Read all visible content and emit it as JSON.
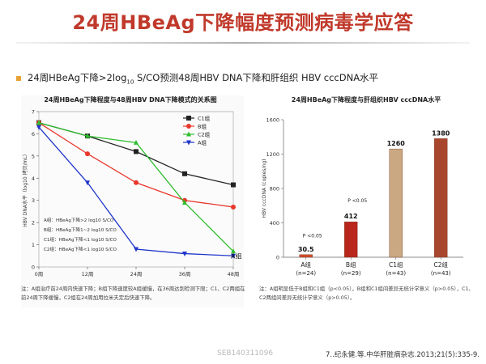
{
  "page": {
    "title": "24周HBeAg下降幅度预测病毒学应答",
    "subtitle_parts": {
      "before": "24周HBeAg下降>2log",
      "sub": "10",
      "after": " S/CO预测48周HBV  DNA下降和肝组织 HBV cccDNA水平"
    },
    "watermark": "SEB140311096",
    "citation": "7..纪永健.等.中华肝脏病杂志.2013;21(5):335-9."
  },
  "chart_data": [
    {
      "type": "line",
      "title": "24周HBeAg下降程度与48周HBV DNA下降模式的关系图",
      "ylabel": "HBV DNA水平（log10 拷贝/mL）",
      "xlabel": "",
      "x": [
        "0周",
        "12周",
        "24周",
        "36周",
        "48周"
      ],
      "ylim": [
        0,
        7
      ],
      "yticks": [
        0,
        1,
        2,
        3,
        4,
        5,
        6,
        7
      ],
      "legend_position": "top-right",
      "series": [
        {
          "name": "C1组",
          "values": [
            6.5,
            5.9,
            5.2,
            4.2,
            3.7
          ],
          "color": "#222222",
          "marker": "square"
        },
        {
          "name": "B组",
          "values": [
            6.5,
            5.1,
            3.8,
            3.0,
            2.7
          ],
          "color": "#e8372c",
          "marker": "circle"
        },
        {
          "name": "C2组",
          "values": [
            6.5,
            5.9,
            5.6,
            2.9,
            0.7
          ],
          "color": "#2ebd2e",
          "marker": "triangle-up"
        },
        {
          "name": "A组",
          "values": [
            6.3,
            3.8,
            0.8,
            0.6,
            0.5
          ],
          "color": "#1f35c9",
          "marker": "triangle-down"
        }
      ],
      "inset_labels": [
        "A组：HBeAg下降>2 log10 S/CO",
        "B组：HBeAg下降1~2 log10 S/CO",
        "C1组：HBeAg下降<1 log10 S/CO",
        "C2组：HBeAg下降<1 log10 S/CO"
      ],
      "end_label": "A组",
      "note": "注：A组治疗前24周内快速下降；B组下降速度较A组缓慢，在36周达到检测下限；C1、C2两组在前24周下降缓慢，C2组在24周加用拉米夫定后快速下降。"
    },
    {
      "type": "bar",
      "title": "24周HBeAg下降程度与肝组织HBV cccDNA水平",
      "ylabel": "HBV cccDNA (copies/ng)",
      "categories": [
        "A组",
        "B组",
        "C1组",
        "C2组"
      ],
      "n_labels": [
        "(n=24)",
        "(n=29)",
        "(n=43)",
        "(n=43)"
      ],
      "values": [
        30.5,
        412,
        1260,
        1380
      ],
      "value_labels": [
        "30.5",
        "412",
        "1260",
        "1380"
      ],
      "colors": [
        "#d24b2a",
        "#b8261c",
        "#c9a882",
        "#a8462e"
      ],
      "ylim": [
        0,
        1600
      ],
      "yticks": [
        0,
        400,
        800,
        1200,
        1600
      ],
      "annotations": [
        "P <0.05",
        "P <0.05"
      ],
      "note": "注：A组明显低于B组和C1组（p<0.05），B组和C1组间差异无统计学意义（p>0.05），C1、C2两组间差异无统计学意义（p>0.05）。"
    }
  ]
}
